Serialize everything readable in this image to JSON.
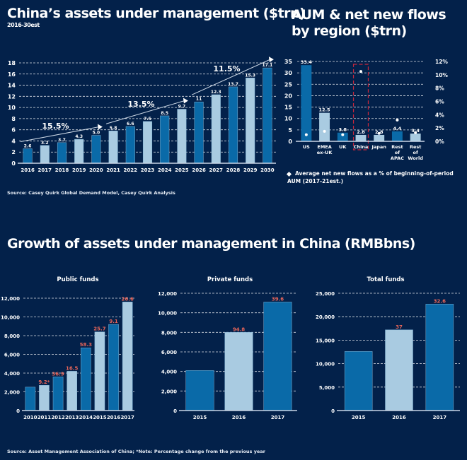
{
  "colors": {
    "background": "#03214a",
    "dark_bar": "#0a6aa8",
    "light_bar": "#a9cbe1",
    "grid": "#ffffff",
    "change_label": "#e8665a",
    "highlight_box": "#c8283c"
  },
  "header": {
    "main_title": "China’s assets under management ($trn)",
    "main_subtitle": "2016-30est",
    "region_title": "AUM & net new flows by region ($trn)",
    "growth_title": "Growth of assets under management in China (RMBbns)"
  },
  "sources": {
    "top": "Source: Casey Quirk Global Demand Model, Casey Quirk Analysis",
    "bottom": "Source: Asset Management Association of China; *Note: Percentage change from the previous year"
  },
  "legend": {
    "flows": "Average net new flows as a % of beginning-of-period AUM (2017-21est.)"
  },
  "chart_data": [
    {
      "id": "china-aum",
      "type": "bar",
      "title": "China’s assets under management ($trn)",
      "subtitle": "2016-30est",
      "categories": [
        "2016",
        "2017",
        "2018",
        "2019",
        "2020",
        "2021",
        "2022",
        "2023",
        "2024",
        "2025",
        "2026",
        "2027",
        "2028",
        "2029",
        "2030"
      ],
      "values": [
        2.6,
        3.2,
        3.7,
        4.3,
        5.0,
        5.8,
        6.6,
        7.5,
        8.5,
        9.7,
        11,
        12.3,
        13.7,
        15.3,
        17.1
      ],
      "value_labels": [
        "2.6",
        "3.2",
        "3.7",
        "4.3",
        "5.0",
        "5.8",
        "6.6",
        "7.5",
        "8.5",
        "9.7",
        "11",
        "12.3",
        "13.7",
        "15.3",
        "17.1"
      ],
      "shades": [
        "dark",
        "light",
        "dark",
        "light",
        "dark",
        "light",
        "dark",
        "light",
        "dark",
        "light",
        "dark",
        "light",
        "dark",
        "light",
        "dark"
      ],
      "ylim": [
        0,
        18
      ],
      "yticks": [
        0,
        2,
        4,
        6,
        8,
        10,
        12,
        14,
        16,
        18
      ],
      "grid": true,
      "annotations": [
        {
          "label": "15.5%",
          "from": "2016",
          "to": "2020"
        },
        {
          "label": "13.5%",
          "from": "2021",
          "to": "2025"
        },
        {
          "label": "11.5%",
          "from": "2026",
          "to": "2030"
        }
      ]
    },
    {
      "id": "region-aum",
      "type": "bar",
      "title": "AUM & net new flows by region ($trn)",
      "categories": [
        "US",
        "EMEA ex-UK",
        "UK",
        "China",
        "Japan",
        "Rest of APAC",
        "Rest of World"
      ],
      "category_lines": [
        [
          "US"
        ],
        [
          "EMEA",
          "ex-UK"
        ],
        [
          "UK"
        ],
        [
          "China"
        ],
        [
          "Japan"
        ],
        [
          "Rest",
          "of",
          "APAC"
        ],
        [
          "Rest",
          "of",
          "World"
        ]
      ],
      "series": [
        {
          "name": "AUM ($trn)",
          "axis": "left",
          "values": [
            33.4,
            12.5,
            3.8,
            2.8,
            2.8,
            4.4,
            3.4
          ],
          "value_labels": [
            "33.4",
            "12.5",
            "3.8",
            "2.8",
            "2.8",
            "4.4",
            "3.4"
          ]
        },
        {
          "name": "Average net new flows as a % of beginning-of-period AUM (2017-21est.)",
          "axis": "right",
          "type": "scatter",
          "values": [
            1.0,
            1.5,
            1.0,
            10.5,
            1.2,
            3.2,
            1.3
          ]
        }
      ],
      "shades": [
        "dark",
        "light",
        "dark",
        "light",
        "light",
        "dark",
        "light"
      ],
      "highlight": "China",
      "ylim": [
        0,
        35
      ],
      "yticks": [
        0,
        5,
        10,
        15,
        20,
        25,
        30,
        35
      ],
      "y2lim": [
        0,
        12
      ],
      "y2ticks": [
        "0%",
        "2%",
        "4%",
        "6%",
        "8%",
        "10%",
        "12%"
      ],
      "grid": true,
      "legend_position": "bottom"
    },
    {
      "id": "public-funds",
      "type": "bar",
      "title": "Public funds",
      "categories": [
        "2010",
        "2011",
        "2012",
        "2013",
        "2014",
        "2015",
        "2016",
        "2017"
      ],
      "values": [
        2500,
        2700,
        3600,
        4200,
        6700,
        8400,
        9200,
        11600
      ],
      "change_labels": [
        "",
        "9.2*",
        "36.9",
        "16.5",
        "58.3",
        "25.7",
        "9.1",
        "26.6"
      ],
      "shades": [
        "dark",
        "light",
        "dark",
        "light",
        "dark",
        "light",
        "dark",
        "light"
      ],
      "ylim": [
        0,
        12000
      ],
      "yticks": [
        "0",
        "2,000",
        "4,000",
        "6,000",
        "8,000",
        "10,000",
        "12,000"
      ],
      "grid": true
    },
    {
      "id": "private-funds",
      "type": "bar",
      "title": "Private funds",
      "categories": [
        "2015",
        "2016",
        "2017"
      ],
      "values": [
        4100,
        8000,
        11100
      ],
      "change_labels": [
        "",
        "94.8",
        "39.6"
      ],
      "shades": [
        "dark",
        "light",
        "dark"
      ],
      "ylim": [
        0,
        12000
      ],
      "yticks": [
        "0",
        "2,000",
        "4,000",
        "6,000",
        "8,000",
        "10,000",
        "12,000"
      ],
      "grid": true
    },
    {
      "id": "total-funds",
      "type": "bar",
      "title": "Total funds",
      "categories": [
        "2015",
        "2016",
        "2017"
      ],
      "values": [
        12600,
        17200,
        22700
      ],
      "change_labels": [
        "",
        "37",
        "32.6"
      ],
      "shades": [
        "dark",
        "light",
        "dark"
      ],
      "ylim": [
        0,
        25000
      ],
      "yticks": [
        "0",
        "5,000",
        "10,000",
        "15,000",
        "20,000",
        "25,000"
      ],
      "grid": true
    }
  ]
}
